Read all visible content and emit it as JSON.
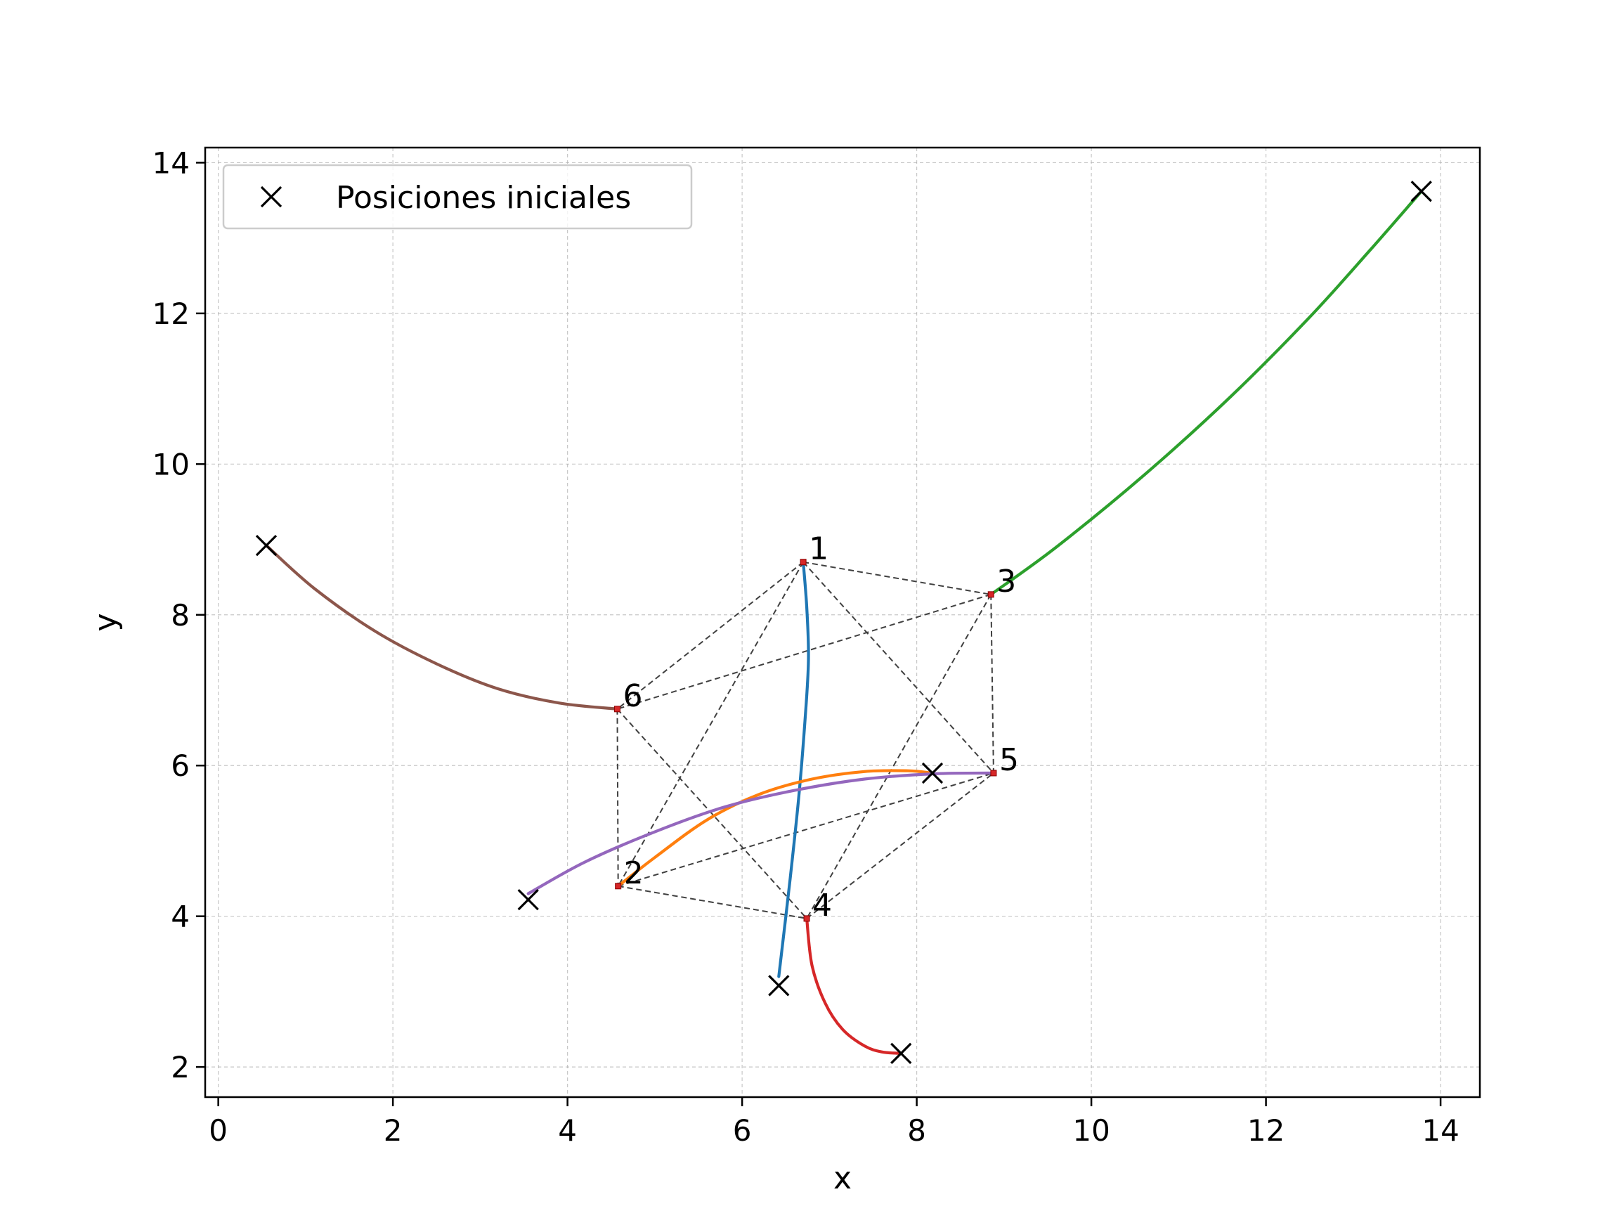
{
  "chart_data": {
    "type": "line",
    "title": "",
    "xlabel": "x",
    "ylabel": "y",
    "xlim": [
      -0.15,
      14.45
    ],
    "ylim": [
      1.6,
      14.2
    ],
    "xticks": [
      0,
      2,
      4,
      6,
      8,
      10,
      12,
      14
    ],
    "yticks": [
      2,
      4,
      6,
      8,
      10,
      12,
      14
    ],
    "grid": true,
    "legend": {
      "placement": "upper-left",
      "entries": [
        "Posiciones iniciales"
      ]
    },
    "initial_positions": [
      [
        0.55,
        8.92
      ],
      [
        3.55,
        4.22
      ],
      [
        6.42,
        3.08
      ],
      [
        7.82,
        2.18
      ],
      [
        8.18,
        5.9
      ],
      [
        13.78,
        13.62
      ]
    ],
    "nodes": [
      {
        "label": "1",
        "x": 6.7,
        "y": 8.7
      },
      {
        "label": "2",
        "x": 4.58,
        "y": 4.4
      },
      {
        "label": "3",
        "x": 8.85,
        "y": 8.27
      },
      {
        "label": "4",
        "x": 6.74,
        "y": 3.97
      },
      {
        "label": "5",
        "x": 8.88,
        "y": 5.9
      },
      {
        "label": "6",
        "x": 4.57,
        "y": 6.75
      }
    ],
    "edges": [
      [
        "1",
        "3"
      ],
      [
        "1",
        "6"
      ],
      [
        "1",
        "2"
      ],
      [
        "1",
        "5"
      ],
      [
        "3",
        "6"
      ],
      [
        "3",
        "5"
      ],
      [
        "3",
        "4"
      ],
      [
        "6",
        "2"
      ],
      [
        "6",
        "4"
      ],
      [
        "2",
        "4"
      ],
      [
        "2",
        "5"
      ],
      [
        "4",
        "5"
      ]
    ],
    "series": [
      {
        "color": "#1f77b4",
        "points": [
          [
            6.42,
            3.2
          ],
          [
            6.55,
            4.5
          ],
          [
            6.65,
            5.6
          ],
          [
            6.72,
            6.6
          ],
          [
            6.76,
            7.4
          ],
          [
            6.74,
            8.1
          ],
          [
            6.7,
            8.7
          ]
        ]
      },
      {
        "color": "#ff7f0e",
        "points": [
          [
            4.58,
            4.4
          ],
          [
            5.0,
            4.78
          ],
          [
            5.6,
            5.28
          ],
          [
            6.2,
            5.62
          ],
          [
            6.8,
            5.82
          ],
          [
            7.4,
            5.92
          ],
          [
            7.9,
            5.93
          ],
          [
            8.18,
            5.9
          ]
        ]
      },
      {
        "color": "#2ca02c",
        "points": [
          [
            8.85,
            8.27
          ],
          [
            9.6,
            8.9
          ],
          [
            10.6,
            9.85
          ],
          [
            11.6,
            10.9
          ],
          [
            12.5,
            11.95
          ],
          [
            13.2,
            12.85
          ],
          [
            13.78,
            13.62
          ]
        ]
      },
      {
        "color": "#d62728",
        "points": [
          [
            6.74,
            3.97
          ],
          [
            6.8,
            3.35
          ],
          [
            6.95,
            2.85
          ],
          [
            7.15,
            2.5
          ],
          [
            7.4,
            2.28
          ],
          [
            7.6,
            2.2
          ],
          [
            7.82,
            2.18
          ]
        ]
      },
      {
        "color": "#9467bd",
        "points": [
          [
            3.55,
            4.3
          ],
          [
            4.2,
            4.72
          ],
          [
            5.0,
            5.12
          ],
          [
            5.8,
            5.45
          ],
          [
            6.6,
            5.67
          ],
          [
            7.4,
            5.82
          ],
          [
            8.2,
            5.89
          ],
          [
            8.88,
            5.9
          ]
        ]
      },
      {
        "color": "#8c564b",
        "points": [
          [
            0.55,
            8.92
          ],
          [
            1.1,
            8.35
          ],
          [
            1.8,
            7.78
          ],
          [
            2.5,
            7.35
          ],
          [
            3.2,
            7.02
          ],
          [
            3.9,
            6.83
          ],
          [
            4.57,
            6.75
          ]
        ]
      }
    ]
  }
}
